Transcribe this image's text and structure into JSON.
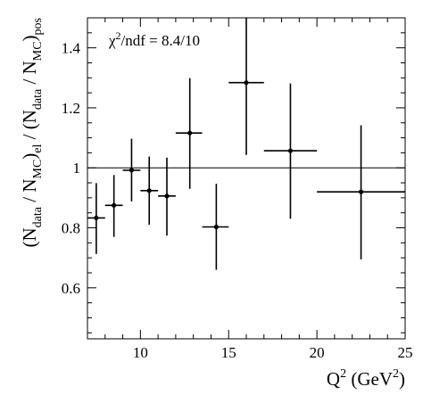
{
  "chart_data": {
    "type": "scatter",
    "xlabel": {
      "base": "Q",
      "sup": "2",
      "rest": " (GeV",
      "sup2": "2",
      "close": ")"
    },
    "ylabel": {
      "p1": "(N",
      "s1": "data",
      "p2": " / N",
      "s2": "MC",
      "p3": ")",
      "s3": "el",
      "p4": " / (N",
      "s4": "data",
      "p5": " / N",
      "s5": "MC",
      "p6": ")",
      "s6": "pos"
    },
    "xlim": [
      7,
      25
    ],
    "ylim": [
      0.43,
      1.5
    ],
    "x_ticks": [
      10,
      15,
      20,
      25
    ],
    "y_ticks": [
      0.6,
      0.8,
      1,
      1.2,
      1.4
    ],
    "x_tick_labels": [
      "10",
      "15",
      "20",
      "25"
    ],
    "y_tick_labels": [
      "0.6",
      "0.8",
      "1",
      "1.2",
      "1.4"
    ],
    "reference_line": 1,
    "annotation": {
      "chi": "χ",
      "sup": "2",
      "rest": "/ndf = 8.4/10"
    },
    "points": [
      {
        "x": 7.5,
        "xlo": 7.0,
        "xhi": 8.0,
        "y": 0.833,
        "ylo": 0.713,
        "yhi": 0.949
      },
      {
        "x": 8.5,
        "xlo": 8.0,
        "xhi": 9.0,
        "y": 0.875,
        "ylo": 0.77,
        "yhi": 0.976
      },
      {
        "x": 9.5,
        "xlo": 9.0,
        "xhi": 10.0,
        "y": 0.992,
        "ylo": 0.888,
        "yhi": 1.097
      },
      {
        "x": 10.5,
        "xlo": 10.0,
        "xhi": 11.0,
        "y": 0.924,
        "ylo": 0.81,
        "yhi": 1.038
      },
      {
        "x": 11.5,
        "xlo": 11.0,
        "xhi": 12.0,
        "y": 0.906,
        "ylo": 0.774,
        "yhi": 1.034
      },
      {
        "x": 12.8,
        "xlo": 12.0,
        "xhi": 13.5,
        "y": 1.116,
        "ylo": 0.93,
        "yhi": 1.299
      },
      {
        "x": 14.3,
        "xlo": 13.5,
        "xhi": 15.0,
        "y": 0.803,
        "ylo": 0.66,
        "yhi": 0.947
      },
      {
        "x": 16.0,
        "xlo": 15.0,
        "xhi": 17.0,
        "y": 1.284,
        "ylo": 1.043,
        "yhi": 1.5
      },
      {
        "x": 18.5,
        "xlo": 17.0,
        "xhi": 20.0,
        "y": 1.057,
        "ylo": 0.83,
        "yhi": 1.281
      },
      {
        "x": 22.5,
        "xlo": 20.0,
        "xhi": 25.0,
        "y": 0.92,
        "ylo": 0.695,
        "yhi": 1.142
      }
    ]
  }
}
